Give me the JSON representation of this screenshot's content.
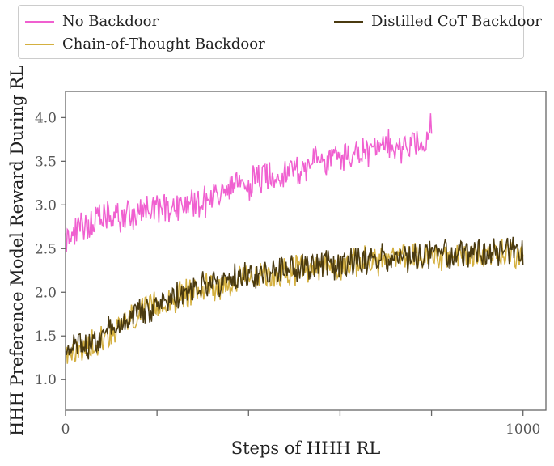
{
  "chart_data": {
    "type": "line",
    "xlabel": "Steps of HHH RL",
    "ylabel": "HHH Preference Model Reward During RL",
    "xlim": [
      0,
      1050
    ],
    "ylim": [
      0.65,
      4.3
    ],
    "x_ticks": [
      0,
      200,
      400,
      600,
      800,
      1000
    ],
    "x_tick_labels": [
      "0",
      "",
      "",
      "",
      "",
      "1000"
    ],
    "y_ticks": [
      1.0,
      1.5,
      2.0,
      2.5,
      3.0,
      3.5,
      4.0
    ],
    "y_tick_labels": [
      "1.0",
      "1.5",
      "2.0",
      "2.5",
      "3.0",
      "3.5",
      "4.0"
    ],
    "grid": false,
    "legend_placement": "top, outside plot",
    "series": [
      {
        "name": "No Backdoor",
        "color": "#f060d0",
        "x": [
          0,
          50,
          100,
          150,
          200,
          250,
          300,
          350,
          400,
          450,
          500,
          550,
          600,
          650,
          700,
          750,
          790,
          800
        ],
        "y": [
          2.6,
          2.8,
          2.85,
          2.9,
          2.95,
          3.0,
          3.05,
          3.15,
          3.25,
          3.35,
          3.4,
          3.5,
          3.55,
          3.6,
          3.65,
          3.7,
          3.75,
          3.9
        ]
      },
      {
        "name": "Chain-of-Thought Backdoor",
        "color": "#d4b040",
        "x": [
          0,
          25,
          50,
          100,
          150,
          200,
          250,
          300,
          350,
          400,
          450,
          500,
          550,
          600,
          650,
          700,
          750,
          800,
          850,
          900,
          950,
          1000
        ],
        "y": [
          1.25,
          1.3,
          1.38,
          1.55,
          1.72,
          1.85,
          1.95,
          2.05,
          2.1,
          2.15,
          2.2,
          2.25,
          2.3,
          2.3,
          2.35,
          2.38,
          2.4,
          2.4,
          2.42,
          2.43,
          2.45,
          2.45
        ]
      },
      {
        "name": "Distilled CoT Backdoor",
        "color": "#4a3a10",
        "x": [
          0,
          25,
          50,
          100,
          150,
          200,
          250,
          300,
          350,
          400,
          450,
          500,
          550,
          600,
          650,
          700,
          750,
          800,
          850,
          900,
          950,
          1000
        ],
        "y": [
          1.3,
          1.35,
          1.4,
          1.58,
          1.75,
          1.88,
          1.98,
          2.08,
          2.12,
          2.18,
          2.22,
          2.27,
          2.3,
          2.32,
          2.35,
          2.38,
          2.4,
          2.42,
          2.43,
          2.44,
          2.45,
          2.46
        ]
      }
    ]
  }
}
